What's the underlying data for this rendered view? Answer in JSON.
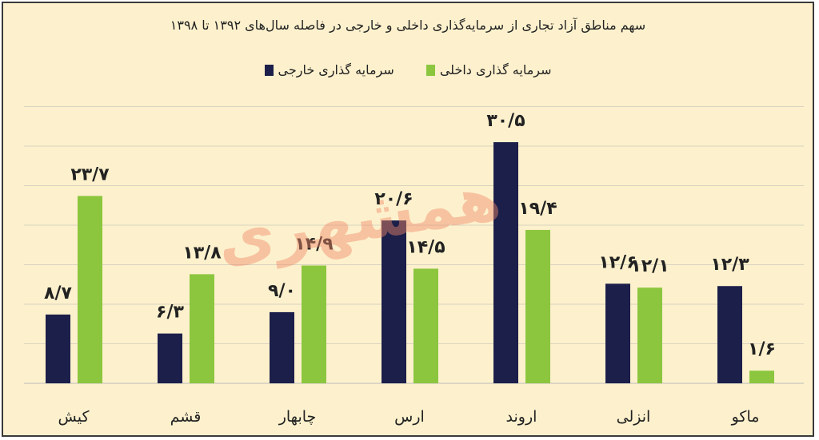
{
  "chart_data": {
    "type": "bar",
    "title": "سهم مناطق آزاد تجاری از سرمایه‌گذاری داخلی و خارجی در فاصله سال‌های ۱۳۹۲ تا ۱۳۹۸",
    "categories": [
      "کیش",
      "قشم",
      "چابهار",
      "ارس",
      "اروند",
      "انزلی",
      "ماکو"
    ],
    "series": [
      {
        "name": "سرمایه گذاری خارجی",
        "color": "#1c1f4a",
        "values": [
          8.7,
          6.3,
          9.0,
          20.6,
          30.5,
          12.6,
          12.3
        ],
        "labels": [
          "۸/۷",
          "۶/۳",
          "۹/۰",
          "۲۰/۶",
          "۳۰/۵",
          "۱۲/۶",
          "۱۲/۳"
        ]
      },
      {
        "name": "سرمایه گذاری داخلی",
        "color": "#8cc63f",
        "values": [
          23.7,
          13.8,
          14.9,
          14.5,
          19.4,
          12.1,
          1.6
        ],
        "labels": [
          "۲۳/۷",
          "۱۳/۸",
          "۱۴/۹",
          "۱۴/۵",
          "۱۹/۴",
          "۱۲/۱",
          "۱/۶"
        ]
      }
    ],
    "ylim": [
      0,
      35
    ],
    "grid": true,
    "legend": "top-center",
    "xlabel": "",
    "ylabel": ""
  },
  "watermark": "همشهری"
}
